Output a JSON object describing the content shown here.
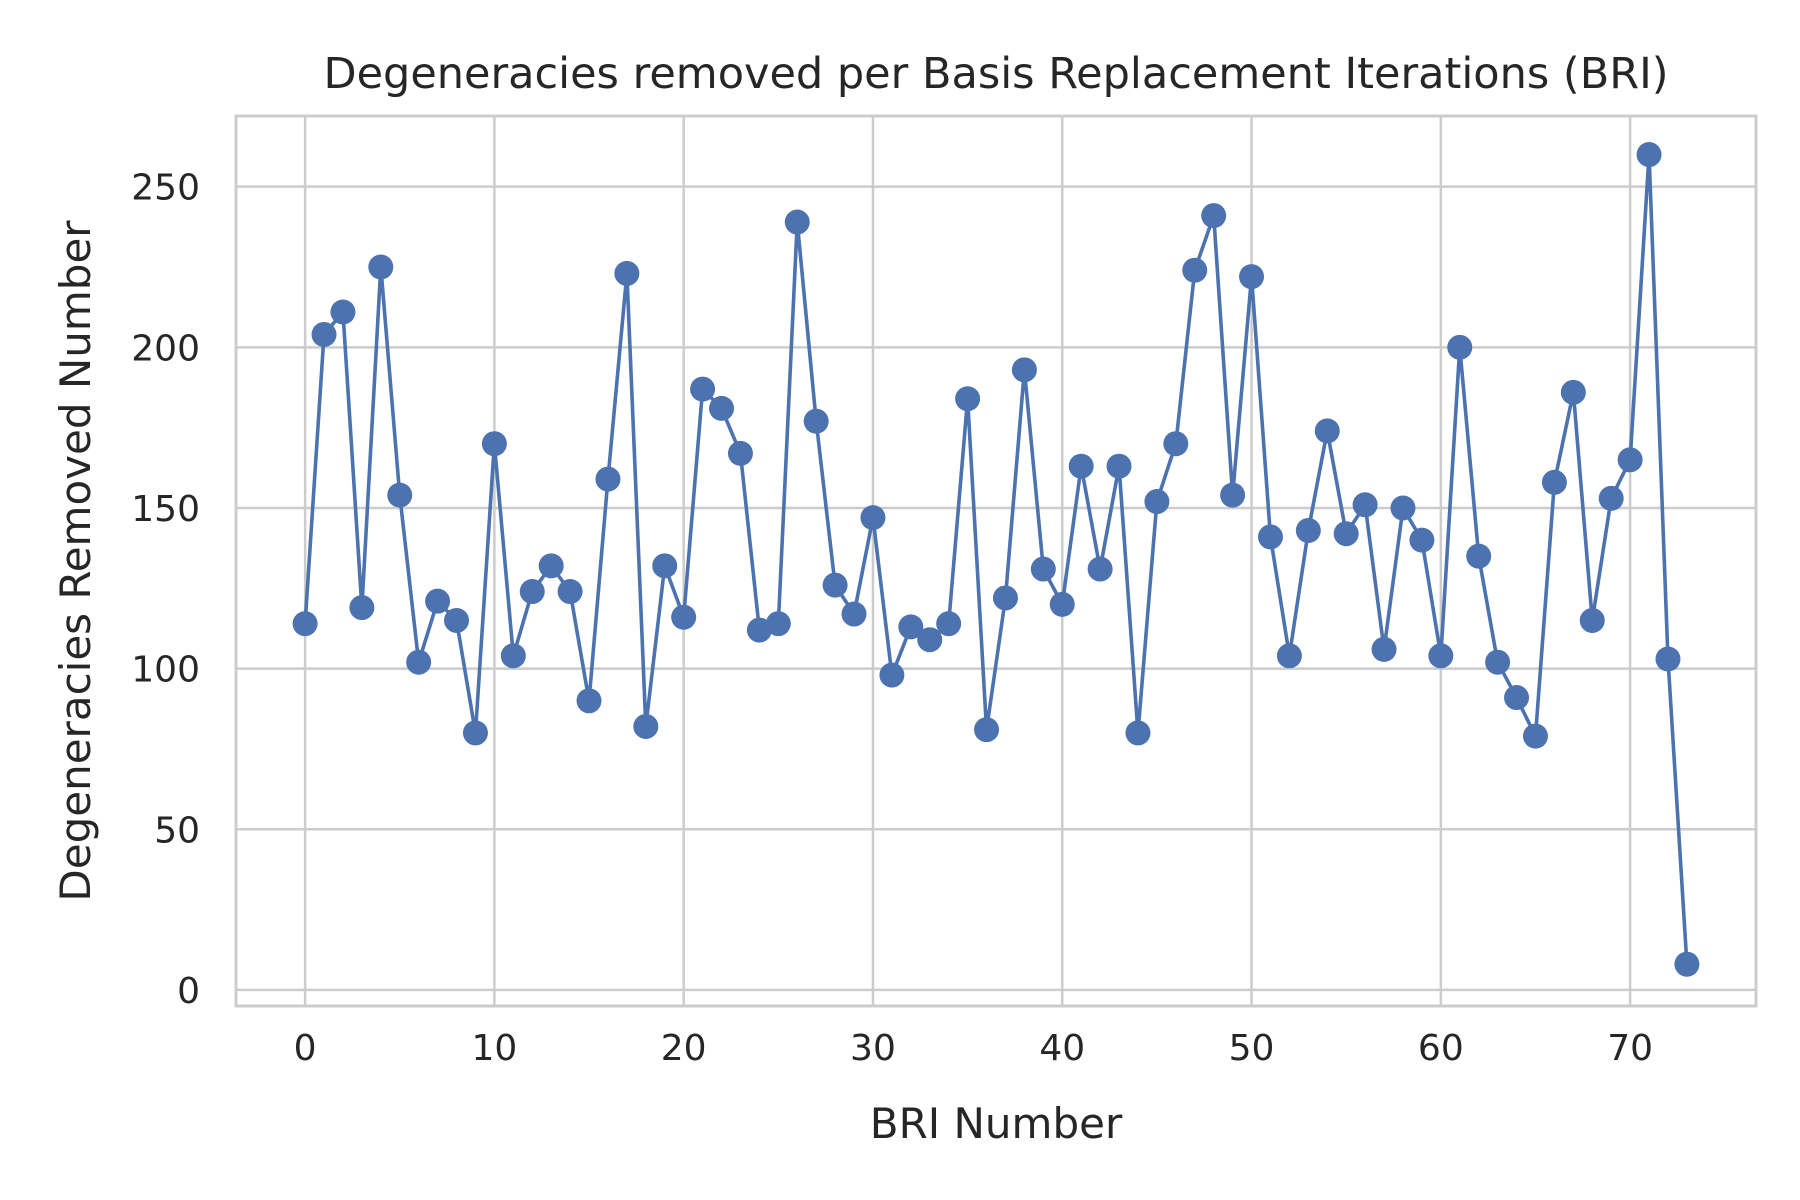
{
  "chart_data": {
    "type": "line",
    "title": "Degeneracies removed per Basis Replacement Iterations (BRI)",
    "xlabel": "BRI Number",
    "ylabel": "Degeneracies Removed Number",
    "xlim": [
      -3.65,
      76.65
    ],
    "ylim": [
      -5,
      272
    ],
    "xticks": [
      0,
      10,
      20,
      30,
      40,
      50,
      60,
      70
    ],
    "yticks": [
      0,
      50,
      100,
      150,
      200,
      250
    ],
    "grid": true,
    "legend": "none",
    "marker": "circle",
    "color": "#4c72b0",
    "grid_color": "#cccccc",
    "series": [
      {
        "x": [
          0,
          1,
          2,
          3,
          4,
          5,
          6,
          7,
          8,
          9,
          10,
          11,
          12,
          13,
          14,
          15,
          16,
          17,
          18,
          19,
          20,
          21,
          22,
          23,
          24,
          25,
          26,
          27,
          28,
          29,
          30,
          31,
          32,
          33,
          34,
          35,
          36,
          37,
          38,
          39,
          40,
          41,
          42,
          43,
          44,
          45,
          46,
          47,
          48,
          49,
          50,
          51,
          52,
          53,
          54,
          55,
          56,
          57,
          58,
          59,
          60,
          61,
          62,
          63,
          64,
          65,
          66,
          67,
          68,
          69,
          70,
          71,
          72,
          73
        ],
        "y": [
          114,
          204,
          211,
          119,
          225,
          154,
          102,
          121,
          115,
          80,
          170,
          104,
          124,
          132,
          124,
          90,
          159,
          223,
          82,
          132,
          116,
          187,
          181,
          167,
          112,
          114,
          239,
          177,
          126,
          117,
          147,
          98,
          113,
          109,
          114,
          184,
          81,
          122,
          193,
          131,
          120,
          163,
          131,
          163,
          80,
          152,
          170,
          224,
          241,
          154,
          222,
          141,
          104,
          143,
          174,
          142,
          151,
          106,
          150,
          140,
          104,
          200,
          135,
          102,
          91,
          79,
          158,
          186,
          115,
          153,
          165,
          260,
          103,
          8
        ]
      }
    ]
  }
}
